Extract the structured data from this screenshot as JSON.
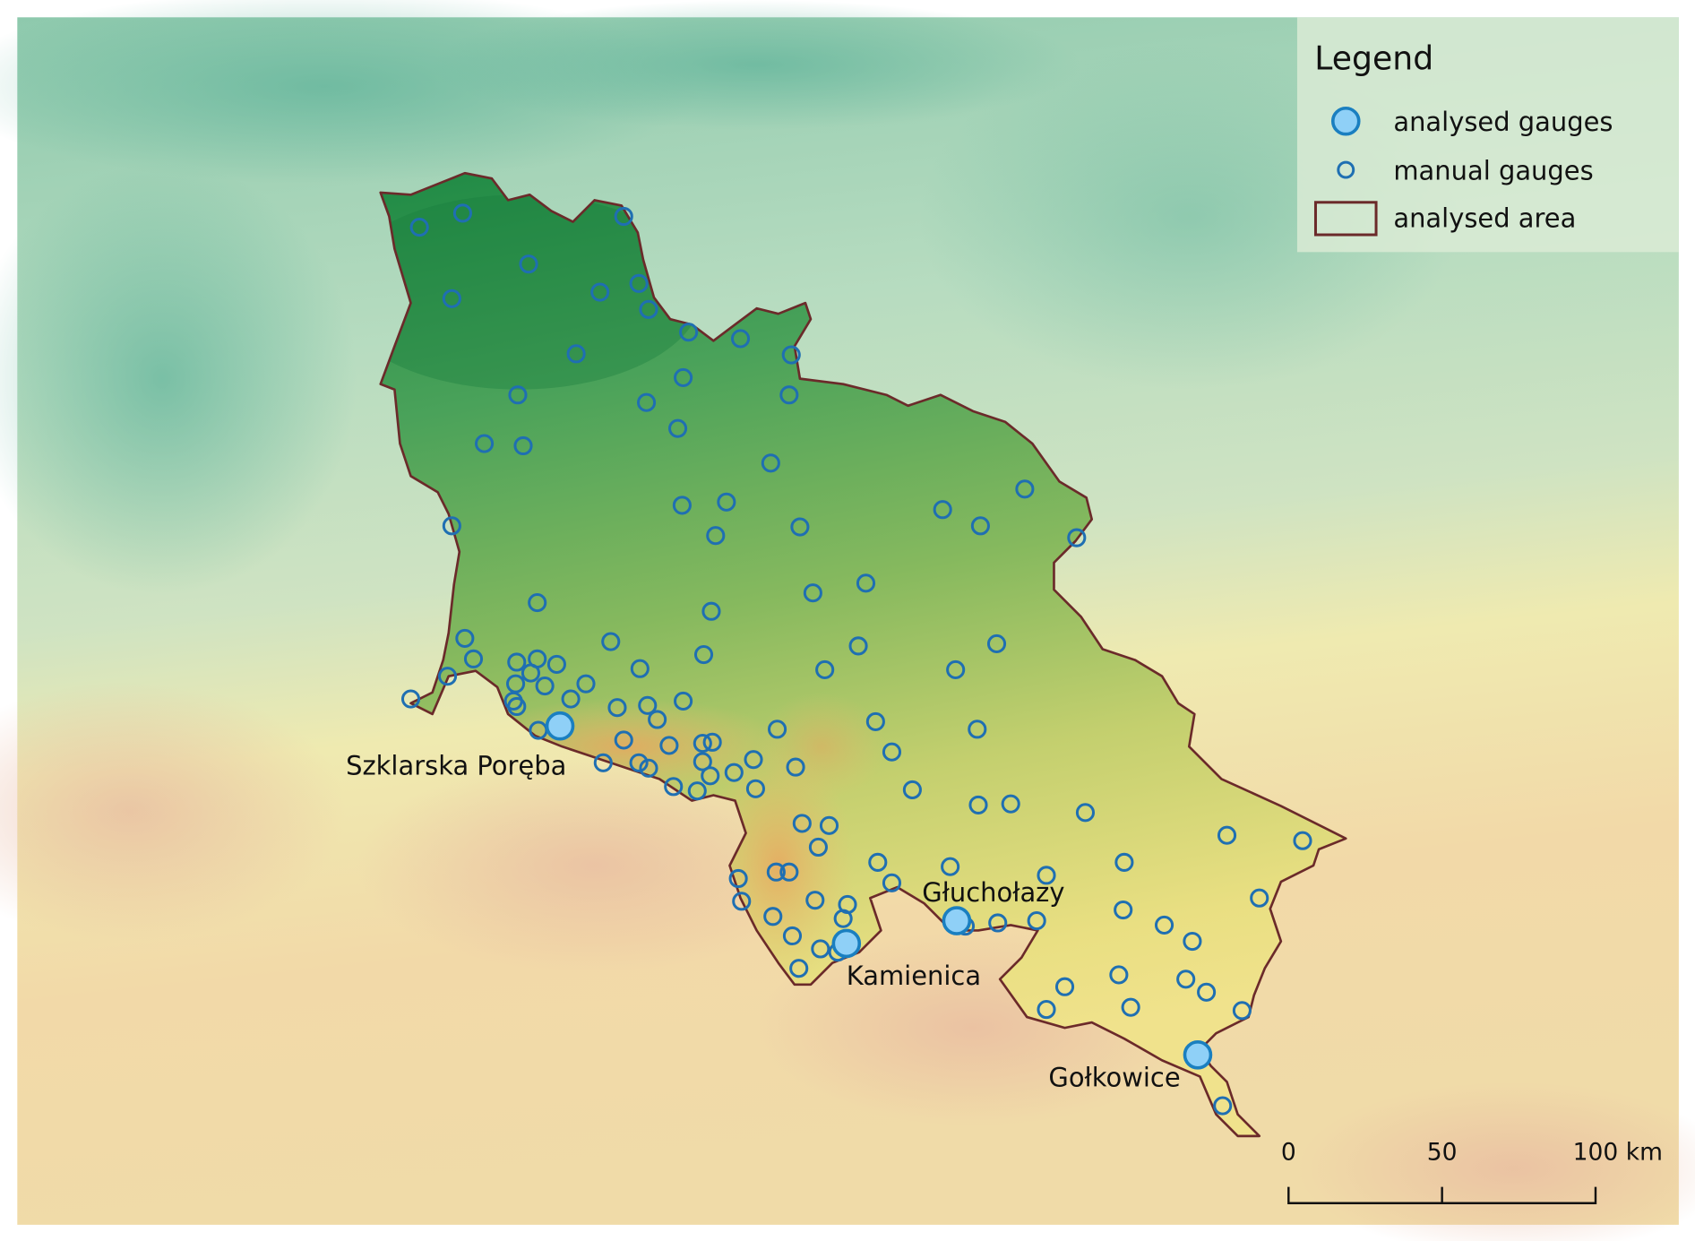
{
  "legend": {
    "title": "Legend",
    "items": [
      {
        "label": "analysed gauges",
        "symbol": "large-circle",
        "fill": "#8fd0f7",
        "stroke": "#1a7fc0"
      },
      {
        "label": "manual gauges",
        "symbol": "small-circle",
        "stroke": "#1f6fb2"
      },
      {
        "label": "analysed area",
        "symbol": "rectangle",
        "stroke": "#6b2a2a"
      }
    ]
  },
  "analysed_gauges": [
    {
      "name": "Szklarska Poręba"
    },
    {
      "name": "Kamienica"
    },
    {
      "name": "Głuchołazy"
    },
    {
      "name": "Gołkowice"
    }
  ],
  "scale_bar": {
    "ticks": [
      "0",
      "50",
      "100 km"
    ]
  },
  "colors": {
    "area_outline": "#6b2a2a",
    "gauge_stroke": "#1f6fb2",
    "analysed_fill": "#8fd0f7"
  }
}
